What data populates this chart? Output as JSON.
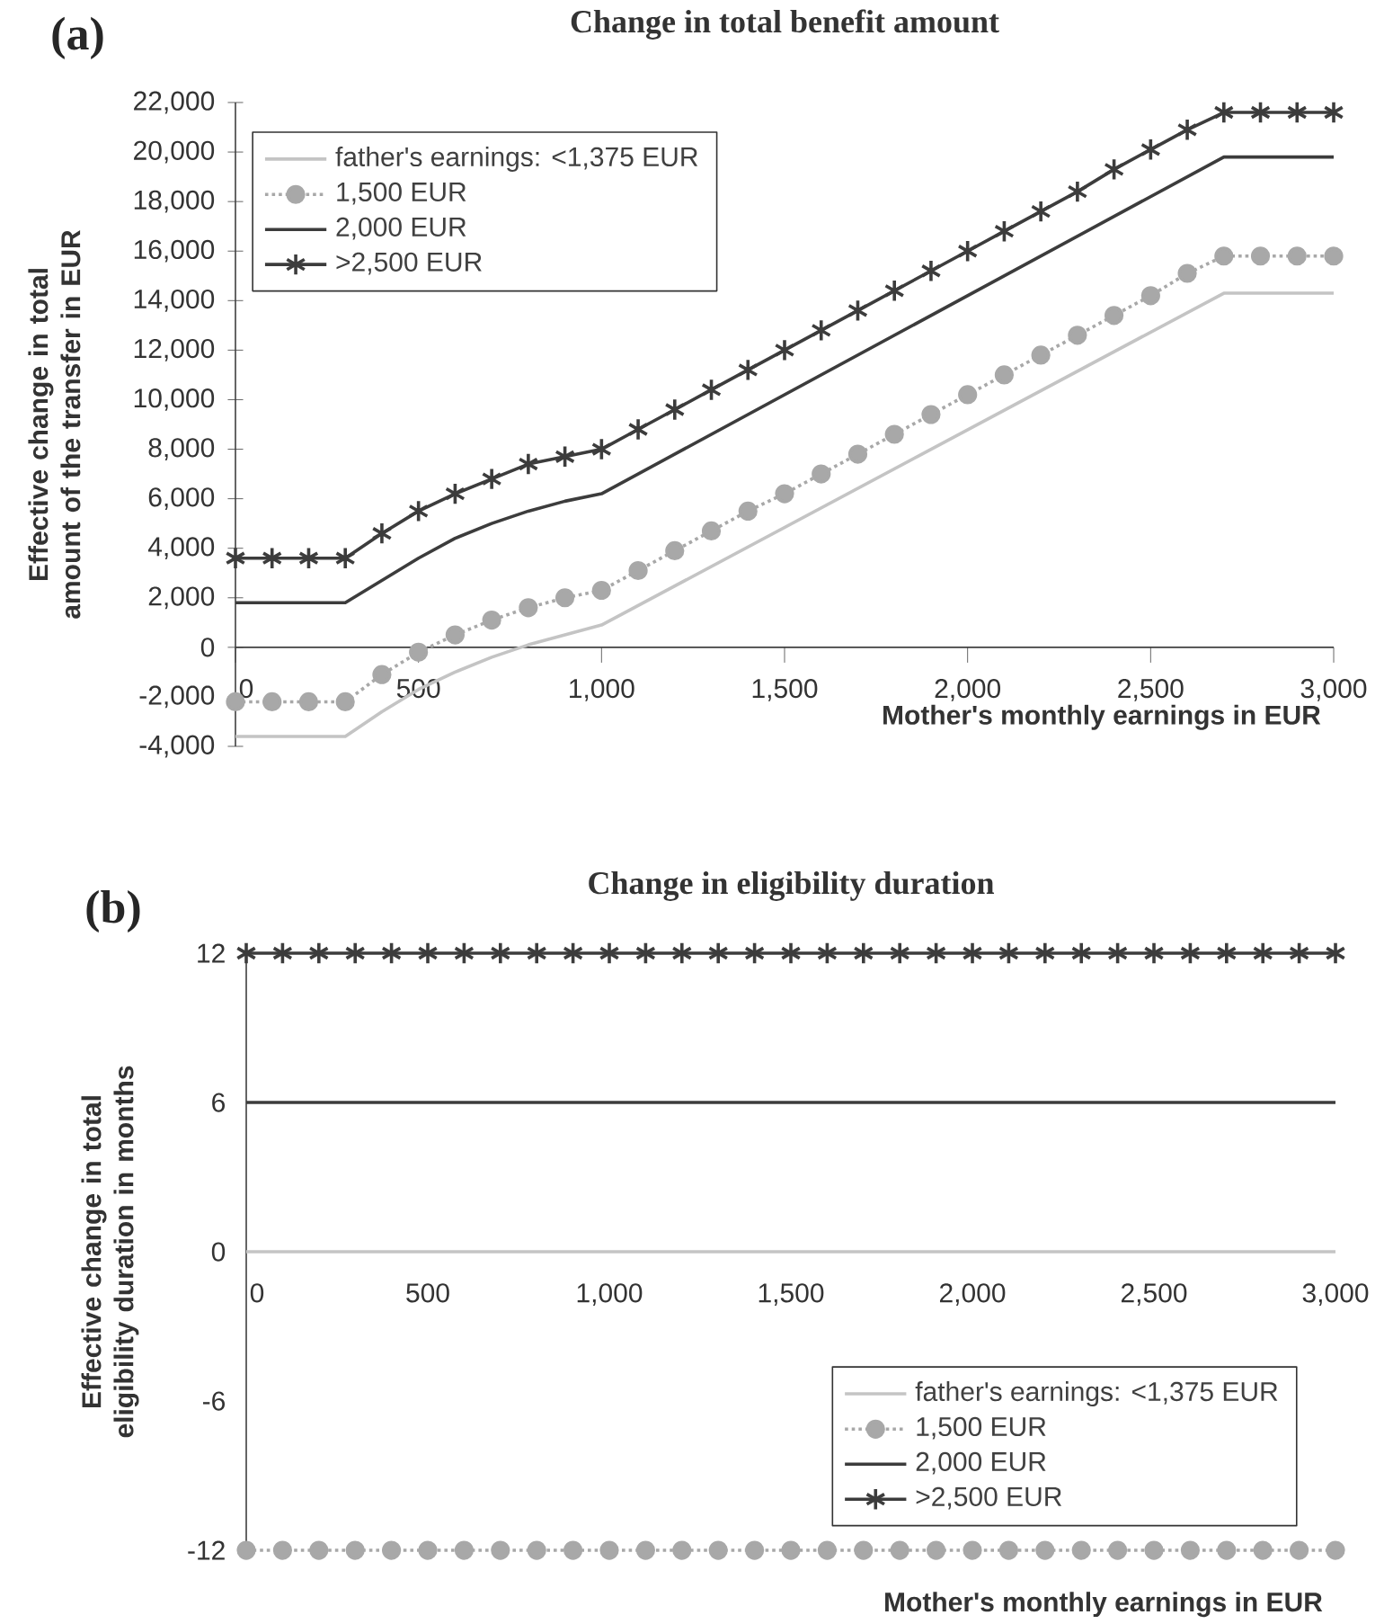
{
  "chart_data": [
    {
      "type": "line",
      "title": "Change in total benefit amount",
      "xlabel": "Mother's monthly earnings in EUR",
      "ylabel": "Effective change in total amount of the transfer in EUR",
      "annotations": [
        "(a)"
      ],
      "xlim": [
        0,
        3000
      ],
      "xticks": [
        {
          "value": 0,
          "label": "0"
        },
        {
          "value": 500,
          "label": "500"
        },
        {
          "value": 1000,
          "label": "1,000"
        },
        {
          "value": 1500,
          "label": "1,500"
        },
        {
          "value": 2000,
          "label": "2,000"
        },
        {
          "value": 2500,
          "label": "2,500"
        },
        {
          "value": 3000,
          "label": "3,000"
        }
      ],
      "ylim": [
        -4000,
        22000
      ],
      "yticks": [
        {
          "value": -4000,
          "label": "-4,000"
        },
        {
          "value": -2000,
          "label": "-2,000"
        },
        {
          "value": 0,
          "label": "0"
        },
        {
          "value": 2000,
          "label": "2,000"
        },
        {
          "value": 4000,
          "label": "4,000"
        },
        {
          "value": 6000,
          "label": "6,000"
        },
        {
          "value": 8000,
          "label": "8,000"
        },
        {
          "value": 10000,
          "label": "10,000"
        },
        {
          "value": 12000,
          "label": "12,000"
        },
        {
          "value": 14000,
          "label": "14,000"
        },
        {
          "value": 16000,
          "label": "16,000"
        },
        {
          "value": 18000,
          "label": "18,000"
        },
        {
          "value": 20000,
          "label": "20,000"
        },
        {
          "value": 22000,
          "label": "22,000"
        }
      ],
      "legend": "top left",
      "series": [
        {
          "name": "father's earnings: <1,375 EUR",
          "color": "#c4c4c4",
          "marker": "none",
          "line_style": "solid",
          "x": [
            0,
            300,
            400,
            500,
            600,
            700,
            800,
            900,
            1000,
            2700,
            3000
          ],
          "values": [
            -3600,
            -3600,
            -2600,
            -1700,
            -1000,
            -400,
            100,
            500,
            900,
            14300,
            14300
          ]
        },
        {
          "name": "1,500 EUR",
          "color": "#a8a8a8",
          "marker": "circle",
          "line_style": "dotted",
          "x": [
            0,
            100,
            200,
            300,
            400,
            500,
            600,
            700,
            800,
            900,
            1000,
            1100,
            1200,
            1300,
            1400,
            1500,
            1600,
            1700,
            1800,
            1900,
            2000,
            2100,
            2200,
            2300,
            2400,
            2500,
            2600,
            2700,
            2800,
            2900,
            3000
          ],
          "values": [
            -2200,
            -2200,
            -2200,
            -2200,
            -1100,
            -200,
            500,
            1100,
            1600,
            2000,
            2300,
            3100,
            3900,
            4700,
            5500,
            6200,
            7000,
            7800,
            8600,
            9400,
            10200,
            11000,
            11800,
            12600,
            13400,
            14200,
            15100,
            15800,
            15800,
            15800,
            15800
          ]
        },
        {
          "name": "2,000 EUR",
          "color": "#3c3c3c",
          "marker": "none",
          "line_style": "solid",
          "x": [
            0,
            300,
            400,
            500,
            600,
            700,
            800,
            900,
            1000,
            2700,
            3000
          ],
          "values": [
            1800,
            1800,
            2700,
            3600,
            4400,
            5000,
            5500,
            5900,
            6200,
            19800,
            19800
          ]
        },
        {
          "name": ">2,500 EUR",
          "color": "#3c3c3c",
          "marker": "cross",
          "line_style": "solid",
          "x": [
            0,
            100,
            200,
            300,
            400,
            500,
            600,
            700,
            800,
            900,
            1000,
            1100,
            1200,
            1300,
            1400,
            1500,
            1600,
            1700,
            1800,
            1900,
            2000,
            2100,
            2200,
            2300,
            2400,
            2500,
            2600,
            2700,
            2800,
            2900,
            3000
          ],
          "values": [
            3600,
            3600,
            3600,
            3600,
            4600,
            5500,
            6200,
            6800,
            7400,
            7700,
            8000,
            8800,
            9600,
            10400,
            11200,
            12000,
            12800,
            13600,
            14400,
            15200,
            16000,
            16800,
            17600,
            18400,
            19300,
            20100,
            20900,
            21600,
            21600,
            21600,
            21600
          ]
        }
      ]
    },
    {
      "type": "line",
      "title": "Change in eligibility duration",
      "xlabel": "Mother's monthly earnings in EUR",
      "ylabel": "Effective change in total eligibility duration in months",
      "annotations": [
        "(b)"
      ],
      "xlim": [
        0,
        3000
      ],
      "xticks": [
        {
          "value": 0,
          "label": "0"
        },
        {
          "value": 500,
          "label": "500"
        },
        {
          "value": 1000,
          "label": "1,000"
        },
        {
          "value": 1500,
          "label": "1,500"
        },
        {
          "value": 2000,
          "label": "2,000"
        },
        {
          "value": 2500,
          "label": "2,500"
        },
        {
          "value": 3000,
          "label": "3,000"
        }
      ],
      "ylim": [
        -12,
        12
      ],
      "yticks": [
        -12,
        -6,
        0,
        6,
        12
      ],
      "legend": "bottom right",
      "series": [
        {
          "name": "father's earnings: <1,375 EUR",
          "color": "#c4c4c4",
          "marker": "none",
          "line_style": "solid",
          "x": [
            0,
            3000
          ],
          "values": [
            0,
            0
          ]
        },
        {
          "name": "1,500 EUR",
          "color": "#a8a8a8",
          "marker": "circle",
          "line_style": "dotted",
          "x": [
            0,
            100,
            200,
            300,
            400,
            500,
            600,
            700,
            800,
            900,
            1000,
            1100,
            1200,
            1300,
            1400,
            1500,
            1600,
            1700,
            1800,
            1900,
            2000,
            2100,
            2200,
            2300,
            2400,
            2500,
            2600,
            2700,
            2800,
            2900,
            3000
          ],
          "values": [
            -12,
            -12,
            -12,
            -12,
            -12,
            -12,
            -12,
            -12,
            -12,
            -12,
            -12,
            -12,
            -12,
            -12,
            -12,
            -12,
            -12,
            -12,
            -12,
            -12,
            -12,
            -12,
            -12,
            -12,
            -12,
            -12,
            -12,
            -12,
            -12,
            -12,
            -12
          ]
        },
        {
          "name": "2,000 EUR",
          "color": "#3c3c3c",
          "marker": "none",
          "line_style": "solid",
          "x": [
            0,
            3000
          ],
          "values": [
            6,
            6
          ]
        },
        {
          "name": ">2,500 EUR",
          "color": "#3c3c3c",
          "marker": "cross",
          "line_style": "solid",
          "x": [
            0,
            100,
            200,
            300,
            400,
            500,
            600,
            700,
            800,
            900,
            1000,
            1100,
            1200,
            1300,
            1400,
            1500,
            1600,
            1700,
            1800,
            1900,
            2000,
            2100,
            2200,
            2300,
            2400,
            2500,
            2600,
            2700,
            2800,
            2900,
            3000
          ],
          "values": [
            12,
            12,
            12,
            12,
            12,
            12,
            12,
            12,
            12,
            12,
            12,
            12,
            12,
            12,
            12,
            12,
            12,
            12,
            12,
            12,
            12,
            12,
            12,
            12,
            12,
            12,
            12,
            12,
            12,
            12,
            12
          ]
        }
      ]
    }
  ]
}
